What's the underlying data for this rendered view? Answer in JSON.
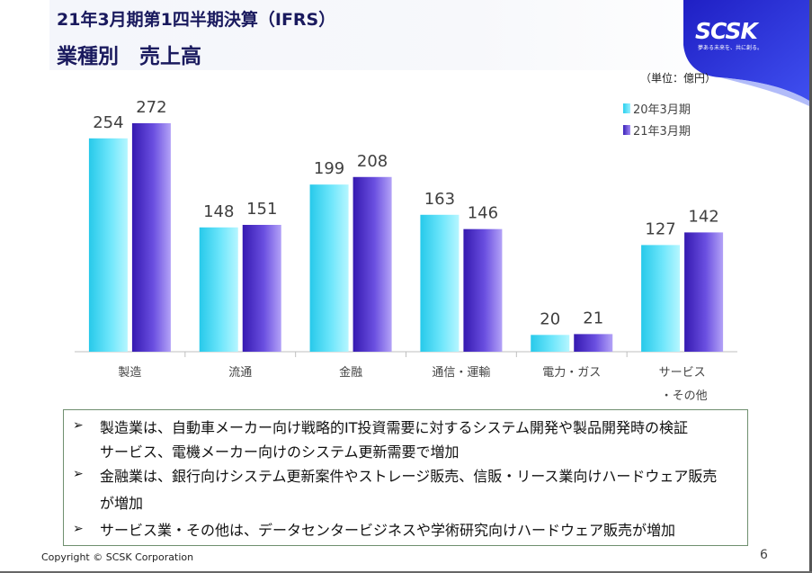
{
  "header": {
    "title": "21年3月期第1四半期決算（IFRS）",
    "subtitle": "業種別　売上高"
  },
  "logo": {
    "name": "SCSK",
    "tagline": "夢ある未来を、共に創る。"
  },
  "unit_label": "（単位：億円）",
  "colors": {
    "series_2020": "#2ad0ee",
    "series_2021": "#3a21b8",
    "title": "#1a1a5e",
    "logo_band": "#2a2fd6"
  },
  "chart_data": {
    "type": "bar",
    "categories": [
      "製造",
      "流通",
      "金融",
      "通信・運輸",
      "電力・ガス",
      "サービス・その他"
    ],
    "category_labels": [
      [
        "製造"
      ],
      [
        "流通"
      ],
      [
        "金融"
      ],
      [
        "通信・運輸"
      ],
      [
        "電力・ガス"
      ],
      [
        "サービス",
        "・その他"
      ]
    ],
    "series": [
      {
        "name": "20年3月期",
        "values": [
          254,
          148,
          199,
          163,
          20,
          127
        ]
      },
      {
        "name": "21年3月期",
        "values": [
          272,
          151,
          208,
          146,
          21,
          142
        ]
      }
    ],
    "title": "",
    "xlabel": "",
    "ylabel": "",
    "ylim": [
      0,
      272
    ],
    "grid": false,
    "legend": "top-right",
    "data_labels": true
  },
  "notes": [
    {
      "lines": [
        "製造業は、自動車メーカー向け戦略的IT投資需要に対するシステム開発や製品開発時の検証",
        "サービス、電機メーカー向けのシステム更新需要で増加"
      ]
    },
    {
      "lines": [
        "金融業は、銀行向けシステム更新案件やストレージ販売、信販・リース業向けハードウェア販売",
        "が増加"
      ]
    },
    {
      "lines": [
        "サービス業・その他は、データセンタービジネスや学術研究向けハードウェア販売が増加"
      ]
    }
  ],
  "footer": {
    "copyright": "Copyright © SCSK Corporation",
    "page_number": "6"
  }
}
